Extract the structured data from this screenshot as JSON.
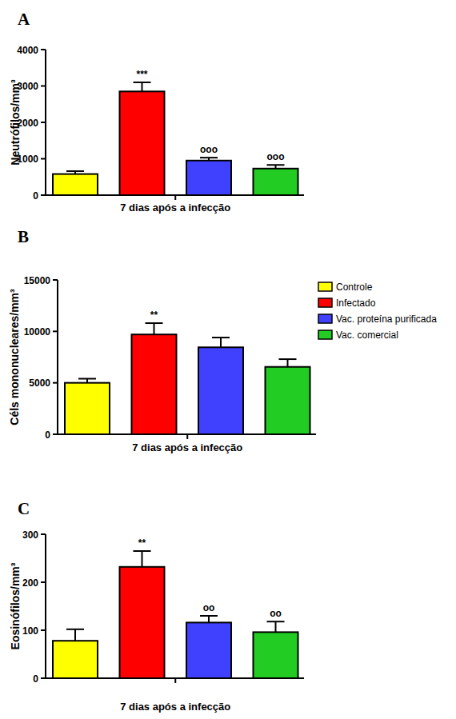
{
  "chart_data": [
    {
      "type": "bar",
      "title": "A",
      "y_label": "Neutrófilos/mm³",
      "categories": [
        "7 dias após a infecção"
      ],
      "ylim": [
        0,
        4000
      ],
      "yticks": [
        0,
        1000,
        2000,
        3000,
        4000
      ],
      "series": [
        {
          "color": "#ffff00",
          "values": [
            580
          ],
          "errors": [
            80
          ],
          "annotations": [
            null
          ]
        },
        {
          "color": "#ff0000",
          "values": [
            2850
          ],
          "errors": [
            250
          ],
          "annotations": [
            "***"
          ]
        },
        {
          "color": "#4040ff",
          "values": [
            950
          ],
          "errors": [
            80
          ],
          "annotations": [
            "ooo"
          ]
        },
        {
          "color": "#22cc22",
          "values": [
            730
          ],
          "errors": [
            100
          ],
          "annotations": [
            "ooo"
          ]
        }
      ]
    },
    {
      "type": "bar",
      "title": "B",
      "y_label": "Céls mononucleares/mm³",
      "categories": [
        "7 dias após a infecção"
      ],
      "ylim": [
        0,
        15000
      ],
      "yticks": [
        0,
        5000,
        10000,
        15000
      ],
      "legend": "right",
      "series": [
        {
          "name": "Controle",
          "color": "#ffff00",
          "values": [
            5000
          ],
          "errors": [
            400
          ],
          "annotations": [
            null
          ]
        },
        {
          "name": "Infectado",
          "color": "#ff0000",
          "values": [
            9700
          ],
          "errors": [
            1100
          ],
          "annotations": [
            "**"
          ]
        },
        {
          "name": "Vac. proteína purificada",
          "color": "#4040ff",
          "values": [
            8450
          ],
          "errors": [
            950
          ],
          "annotations": [
            null
          ]
        },
        {
          "name": "Vac. comercial",
          "color": "#22cc22",
          "values": [
            6550
          ],
          "errors": [
            750
          ],
          "annotations": [
            null
          ]
        }
      ]
    },
    {
      "type": "bar",
      "title": "C",
      "y_label": "Eosinófilos/mm³",
      "categories": [
        "7 dias após a infecção"
      ],
      "ylim": [
        0,
        300
      ],
      "yticks": [
        0,
        100,
        200,
        300
      ],
      "series": [
        {
          "color": "#ffff00",
          "values": [
            78
          ],
          "errors": [
            24
          ],
          "annotations": [
            null
          ]
        },
        {
          "color": "#ff0000",
          "values": [
            232
          ],
          "errors": [
            33
          ],
          "annotations": [
            "**"
          ]
        },
        {
          "color": "#4040ff",
          "values": [
            116
          ],
          "errors": [
            14
          ],
          "annotations": [
            "oo"
          ]
        },
        {
          "color": "#22cc22",
          "values": [
            96
          ],
          "errors": [
            22
          ],
          "annotations": [
            "oo"
          ]
        }
      ]
    }
  ]
}
